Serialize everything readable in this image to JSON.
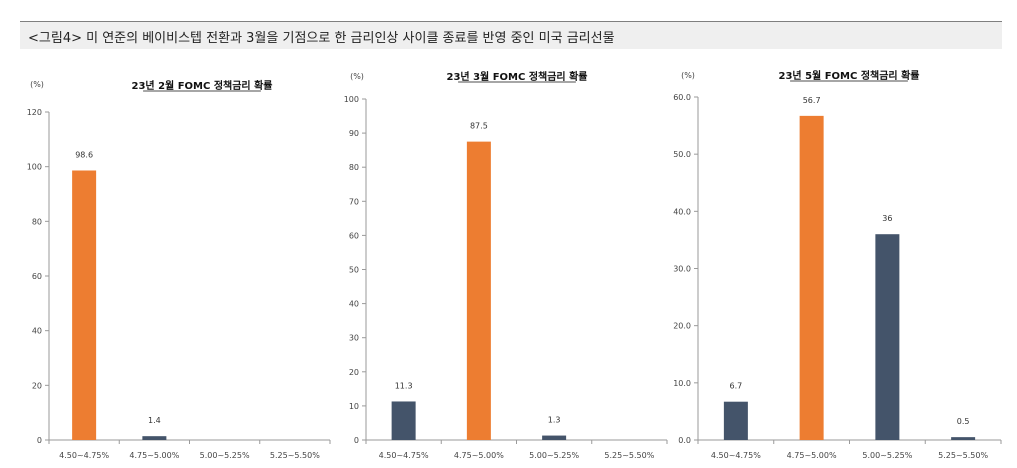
{
  "figure": {
    "caption": "<그림4> 미 연준의 베이비스텝 전환과 3월을 기점으로 한 금리인상 사이클 종료를 반영 중인 미국 금리선물"
  },
  "colors": {
    "highlight": "#ed7d31",
    "default": "#44546a",
    "axis": "#9a9a9a"
  },
  "chart_data": [
    {
      "type": "bar",
      "title": "23년 2월 FOMC 정책금리 확률",
      "unit_label": "(%)",
      "categories": [
        "4.50~4.75%",
        "4.75~5.00%",
        "5.00~5.25%",
        "5.25~5.50%"
      ],
      "values": [
        98.6,
        1.4,
        0,
        0
      ],
      "data_labels": [
        "98.6",
        "1.4",
        "",
        ""
      ],
      "highlight": [
        true,
        false,
        false,
        false
      ],
      "ylim": [
        0,
        120
      ],
      "yticks": [
        0,
        20,
        40,
        60,
        80,
        100,
        120
      ],
      "ytick_labels": [
        "0",
        "20",
        "40",
        "60",
        "80",
        "100",
        "120"
      ],
      "grid": false,
      "legend": "none"
    },
    {
      "type": "bar",
      "title": "23년 3월 FOMC 정책금리 확률",
      "unit_label": "(%)",
      "categories": [
        "4.50~4.75%",
        "4.75~5.00%",
        "5.00~5.25%",
        "5.25~5.50%"
      ],
      "values": [
        11.3,
        87.5,
        1.3,
        0
      ],
      "data_labels": [
        "11.3",
        "87.5",
        "1.3",
        ""
      ],
      "highlight": [
        false,
        true,
        false,
        false
      ],
      "ylim": [
        0,
        100
      ],
      "yticks": [
        0,
        10,
        20,
        30,
        40,
        50,
        60,
        70,
        80,
        90,
        100
      ],
      "ytick_labels": [
        "0",
        "10",
        "20",
        "30",
        "40",
        "50",
        "60",
        "70",
        "80",
        "90",
        "100"
      ],
      "grid": false,
      "legend": "none"
    },
    {
      "type": "bar",
      "title": "23년 5월 FOMC 정책금리 확률",
      "unit_label": "(%)",
      "categories": [
        "4.50~4.75%",
        "4.75~5.00%",
        "5.00~5.25%",
        "5.25~5.50%"
      ],
      "values": [
        6.7,
        56.7,
        36,
        0.5
      ],
      "data_labels": [
        "6.7",
        "56.7",
        "36",
        "0.5"
      ],
      "highlight": [
        false,
        true,
        false,
        false
      ],
      "ylim": [
        0,
        60
      ],
      "yticks": [
        0,
        10,
        20,
        30,
        40,
        50,
        60
      ],
      "ytick_labels": [
        "0.0",
        "10.0",
        "20.0",
        "30.0",
        "40.0",
        "50.0",
        "60.0"
      ],
      "grid": false,
      "legend": "none"
    }
  ]
}
